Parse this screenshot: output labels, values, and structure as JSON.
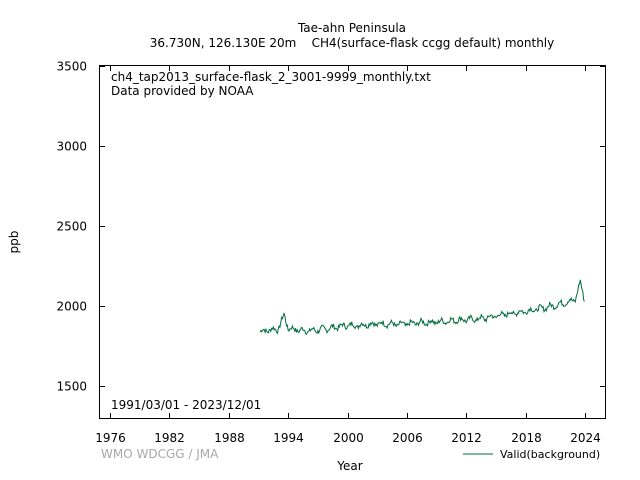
{
  "chart_data": {
    "type": "line",
    "title": "Tae-ahn Peninsula",
    "subtitle": "36.730N, 126.130E 20m    CH4(surface-flask ccgg default) monthly",
    "xlabel": "Year",
    "ylabel": "ppb",
    "xlim": [
      1975,
      2026
    ],
    "ylim": [
      1300,
      3500
    ],
    "x_ticks": [
      1976,
      1982,
      1988,
      1994,
      2000,
      2006,
      2012,
      2018,
      2024
    ],
    "y_ticks": [
      1500,
      2000,
      2500,
      3000,
      3500
    ],
    "grid": false,
    "legend_position": "bottom-right",
    "annotations": {
      "file": "ch4_tap2013_surface-flask_2_3001-9999_monthly.txt",
      "provider": "Data provided by NOAA",
      "period": "1991/03/01 - 2023/12/01",
      "credit": "WMO WDCGG / JMA"
    },
    "series": [
      {
        "name": "Valid(background)",
        "color": "#006b3c",
        "anchors": [
          [
            1991.17,
            1840
          ],
          [
            1992.0,
            1850
          ],
          [
            1993.0,
            1855
          ],
          [
            1993.6,
            1945
          ],
          [
            1994.0,
            1860
          ],
          [
            1995.0,
            1850
          ],
          [
            1996.0,
            1845
          ],
          [
            1997.0,
            1850
          ],
          [
            1998.0,
            1860
          ],
          [
            1999.0,
            1870
          ],
          [
            2000.0,
            1880
          ],
          [
            2001.0,
            1878
          ],
          [
            2002.0,
            1885
          ],
          [
            2003.0,
            1890
          ],
          [
            2004.0,
            1888
          ],
          [
            2005.0,
            1885
          ],
          [
            2006.0,
            1887
          ],
          [
            2007.0,
            1895
          ],
          [
            2008.0,
            1898
          ],
          [
            2009.0,
            1900
          ],
          [
            2010.0,
            1905
          ],
          [
            2011.0,
            1912
          ],
          [
            2012.0,
            1915
          ],
          [
            2013.0,
            1918
          ],
          [
            2014.0,
            1925
          ],
          [
            2015.0,
            1938
          ],
          [
            2016.0,
            1950
          ],
          [
            2017.0,
            1958
          ],
          [
            2018.0,
            1968
          ],
          [
            2019.0,
            1978
          ],
          [
            2020.0,
            1990
          ],
          [
            2021.0,
            2005
          ],
          [
            2022.0,
            2022
          ],
          [
            2023.0,
            2040
          ],
          [
            2023.5,
            2150
          ],
          [
            2023.92,
            2040
          ]
        ]
      }
    ]
  }
}
